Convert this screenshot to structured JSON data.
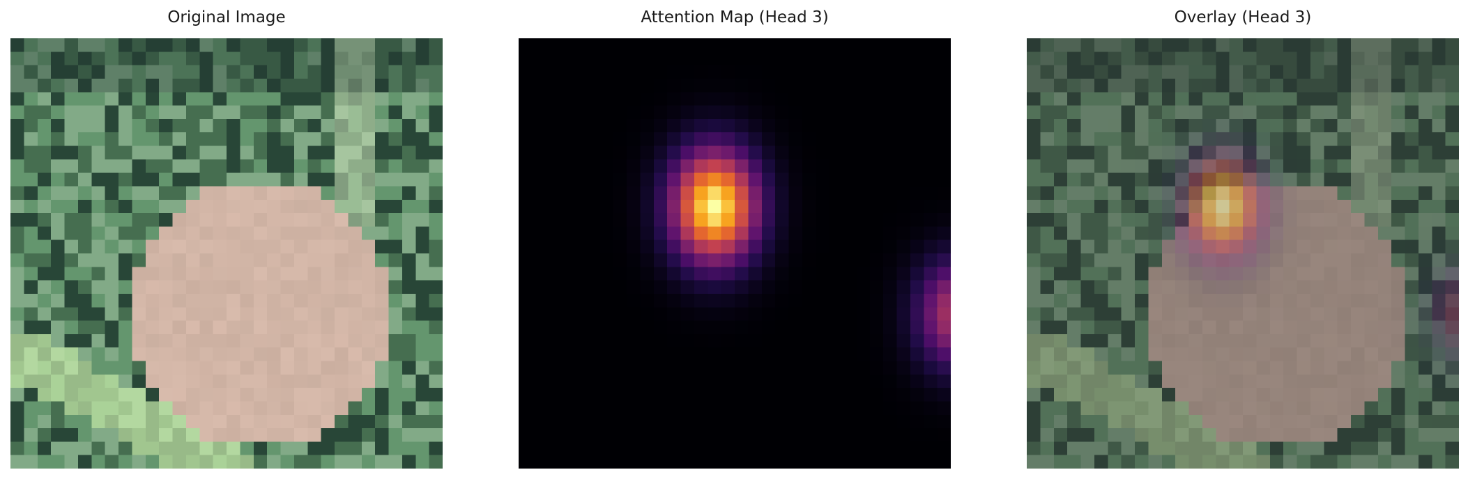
{
  "figure": {
    "panels": [
      {
        "title": "Original Image",
        "kind": "original"
      },
      {
        "title": "Attention Map (Head 3)",
        "kind": "attention",
        "colormap": "inferno"
      },
      {
        "title": "Overlay (Head 3)",
        "kind": "overlay"
      }
    ]
  }
}
